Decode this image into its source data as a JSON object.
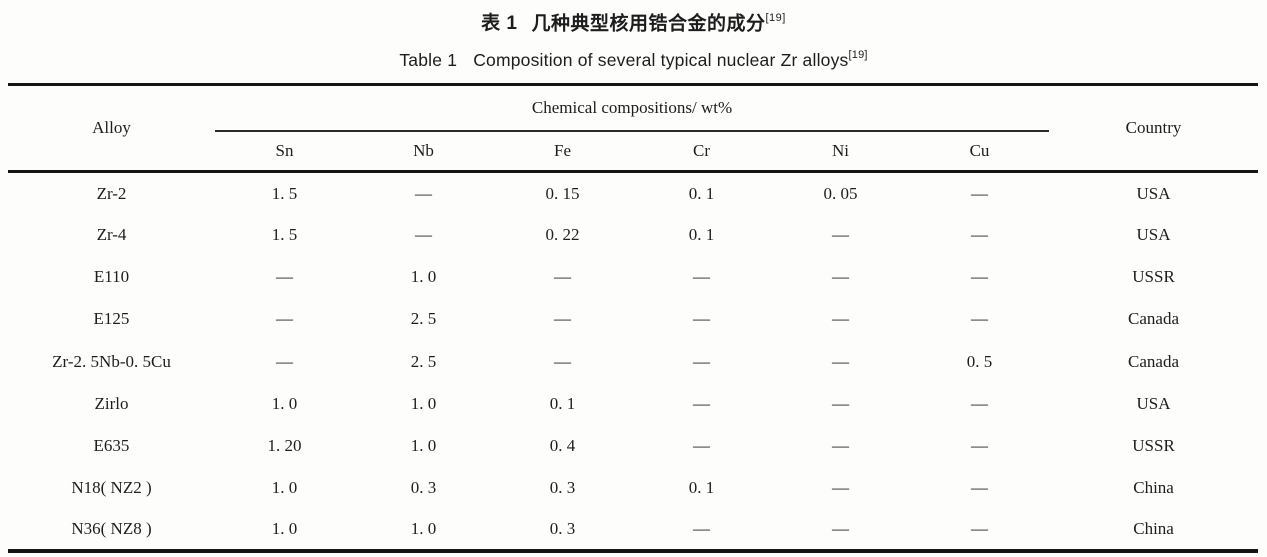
{
  "caption": {
    "zh_label": "表 1",
    "zh_text": "几种典型核用锆合金的成分",
    "en_label": "Table 1",
    "en_text": "Composition of several typical nuclear Zr alloys",
    "ref": "[19]"
  },
  "table": {
    "alloy_header": "Alloy",
    "group_header": "Chemical compositions/ wt%",
    "country_header": "Country",
    "elements": [
      "Sn",
      "Nb",
      "Fe",
      "Cr",
      "Ni",
      "Cu"
    ],
    "rows": [
      {
        "alloy": "Zr-2",
        "values": [
          "1. 5",
          "—",
          "0. 15",
          "0. 1",
          "0. 05",
          "—"
        ],
        "country": "USA"
      },
      {
        "alloy": "Zr-4",
        "values": [
          "1. 5",
          "—",
          "0. 22",
          "0. 1",
          "—",
          "—"
        ],
        "country": "USA"
      },
      {
        "alloy": "E110",
        "values": [
          "—",
          "1. 0",
          "—",
          "—",
          "—",
          "—"
        ],
        "country": "USSR"
      },
      {
        "alloy": "E125",
        "values": [
          "—",
          "2. 5",
          "—",
          "—",
          "—",
          "—"
        ],
        "country": "Canada"
      },
      {
        "alloy": "Zr-2. 5Nb-0. 5Cu",
        "values": [
          "—",
          "2. 5",
          "—",
          "—",
          "—",
          "0. 5"
        ],
        "country": "Canada"
      },
      {
        "alloy": "Zirlo",
        "values": [
          "1. 0",
          "1. 0",
          "0. 1",
          "—",
          "—",
          "—"
        ],
        "country": "USA"
      },
      {
        "alloy": "E635",
        "values": [
          "1. 20",
          "1. 0",
          "0. 4",
          "—",
          "—",
          "—"
        ],
        "country": "USSR"
      },
      {
        "alloy": "N18( NZ2 )",
        "values": [
          "1. 0",
          "0. 3",
          "0. 3",
          "0. 1",
          "—",
          "—"
        ],
        "country": "China"
      },
      {
        "alloy": "N36( NZ8 )",
        "values": [
          "1. 0",
          "1. 0",
          "0. 3",
          "—",
          "—",
          "—"
        ],
        "country": "China"
      }
    ]
  }
}
